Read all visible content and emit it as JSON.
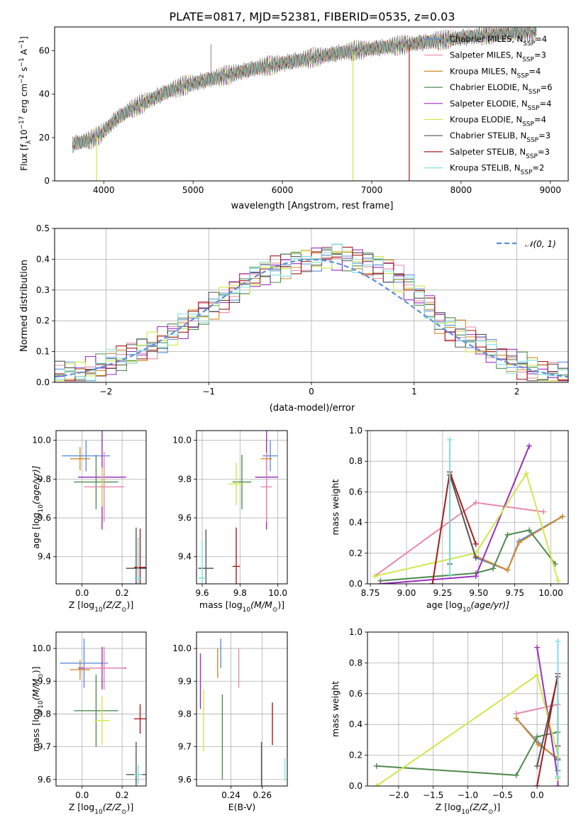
{
  "figure_title": "PLATE=0817, MJD=52381, FIBERID=0535, z=0.03",
  "colors": {
    "Chabrier MILES": "#5b8fdc",
    "Salpeter MILES": "#e48aa8",
    "Kroupa MILES": "#d08b2a",
    "Chabrier ELODIE": "#4f8a4f",
    "Salpeter ELODIE": "#9a2fc0",
    "Kroupa ELODIE": "#cfe84a",
    "Chabrier STELIB": "#555555",
    "Salpeter STELIB": "#a51c1c",
    "Kroupa STELIB": "#7fe0e0",
    "median": "#ed7a2b",
    "normal_curve": "#5b8fdc"
  },
  "panel_spectrum": {
    "xlabel": "wavelength [Angstrom, rest frame]",
    "ylabel": "Flux [f",
    "ylabel_sub": "λ",
    "ylabel_rest": "10",
    "ylabel_exp": "−17",
    "ylabel_tail": " erg cm",
    "ylabel_exp2": "−2",
    "ylabel_tail2": " s",
    "ylabel_exp3": "−1",
    "ylabel_tail3": " A",
    "ylabel_exp4": "−1",
    "ylabel_end": "]",
    "legend": [
      {
        "name": "Chabrier MILES",
        "n": "4"
      },
      {
        "name": "Salpeter MILES",
        "n": "3"
      },
      {
        "name": "Kroupa MILES",
        "n": "4"
      },
      {
        "name": "Chabrier ELODIE",
        "n": "6"
      },
      {
        "name": "Salpeter ELODIE",
        "n": "4"
      },
      {
        "name": "Kroupa ELODIE",
        "n": "4"
      },
      {
        "name": "Chabrier STELIB",
        "n": "3"
      },
      {
        "name": "Salpeter STELIB",
        "n": "3"
      },
      {
        "name": "Kroupa STELIB",
        "n": "2"
      }
    ],
    "nssp_prefix": ", N",
    "nssp_sub": "SSP",
    "nssp_eq": "="
  },
  "chart_data": [
    {
      "type": "line",
      "xlim": [
        3450,
        9200
      ],
      "ylim": [
        0,
        71
      ],
      "xticks": [
        4000,
        5000,
        6000,
        7000,
        8000,
        9000
      ],
      "yticks": [
        0,
        20,
        40,
        60
      ],
      "continuum": {
        "x": [
          3650,
          3750,
          3850,
          3950,
          4050,
          4150,
          4300,
          4500,
          4700,
          4900,
          5100,
          5300,
          5500,
          5700,
          5900,
          6100,
          6300,
          6500,
          6700,
          6900,
          7100,
          7300,
          7500,
          7700,
          7900,
          8100,
          8300,
          8500,
          8700,
          8850
        ],
        "y": [
          17,
          18,
          19,
          21,
          25,
          29,
          33,
          37,
          41,
          44,
          46,
          48,
          50,
          52,
          53.5,
          55,
          56.5,
          58,
          59.5,
          60.5,
          61.5,
          62.5,
          63.5,
          64.5,
          65.5,
          66.5,
          67.5,
          68,
          68.5,
          69
        ]
      },
      "drops": [
        {
          "series": "Kroupa ELODIE",
          "wavelength": 3920
        },
        {
          "series": "Kroupa ELODIE",
          "wavelength": 6790
        },
        {
          "series": "Salpeter STELIB",
          "wavelength": 7420
        }
      ],
      "spike": {
        "wavelength": 5200,
        "value": 63
      }
    },
    {
      "type": "bar",
      "title": "",
      "xlabel": "(data-model)/error",
      "ylabel": "Normed distribution",
      "xlim": [
        -2.5,
        2.5
      ],
      "ylim": [
        0,
        0.5
      ],
      "xticks": [
        -2,
        -1,
        0,
        1,
        2
      ],
      "yticks": [
        0.0,
        0.1,
        0.2,
        0.3,
        0.4,
        0.5
      ],
      "bin_edges_start": -2.5,
      "bin_width": 0.1,
      "legend_label": "𝒩(0, 1)",
      "base_histogram": [
        0.025,
        0.027,
        0.03,
        0.04,
        0.05,
        0.062,
        0.075,
        0.09,
        0.105,
        0.12,
        0.14,
        0.16,
        0.18,
        0.2,
        0.225,
        0.25,
        0.27,
        0.3,
        0.325,
        0.34,
        0.355,
        0.37,
        0.38,
        0.395,
        0.4,
        0.405,
        0.41,
        0.41,
        0.405,
        0.4,
        0.39,
        0.38,
        0.365,
        0.34,
        0.31,
        0.28,
        0.25,
        0.2,
        0.175,
        0.16,
        0.14,
        0.12,
        0.1,
        0.085,
        0.07,
        0.055,
        0.04,
        0.03,
        0.025,
        0.02
      ]
    },
    {
      "type": "scatter",
      "xlabel": "Z [log",
      "xlabel_sub": "10",
      "xlabel_rest": "(Z/Z",
      "xlabel_sub2": "⊙",
      "xlabel_end": ")]",
      "ylabel": "age  [log",
      "ylabel_sub": "10",
      "ylabel_rest": "(age/yr)]",
      "xlim": [
        -0.13,
        0.32
      ],
      "ylim": [
        9.26,
        10.05
      ],
      "xticks": [
        0.0,
        0.2
      ],
      "yticks": [
        9.4,
        9.6,
        9.8,
        10.0
      ],
      "points": [
        {
          "series": "Chabrier MILES",
          "x": 0.02,
          "y": 9.92,
          "xerr": 0.12,
          "yerr": 0.08
        },
        {
          "series": "Kroupa MILES",
          "x": -0.01,
          "y": 9.905,
          "xerr": 0.05,
          "yerr": 0.06
        },
        {
          "series": "Salpeter ELODIE",
          "x": 0.1,
          "y": 9.81,
          "xerr": 0.12,
          "yerr": 0.27
        },
        {
          "series": "Chabrier ELODIE",
          "x": 0.07,
          "y": 9.785,
          "xerr": 0.11,
          "yerr": 0.14
        },
        {
          "series": "Kroupa ELODIE",
          "x": 0.1,
          "y": 9.76,
          "xerr": 0.04,
          "yerr": 0.1
        },
        {
          "series": "Salpeter MILES",
          "x": 0.11,
          "y": 9.76,
          "xerr": 0.1,
          "yerr": 0.18
        },
        {
          "series": "Chabrier STELIB",
          "x": 0.27,
          "y": 9.34,
          "xerr": 0.05,
          "yerr": 0.21
        },
        {
          "series": "Salpeter STELIB",
          "x": 0.29,
          "y": 9.345,
          "xerr": 0.03,
          "yerr": 0.2
        },
        {
          "series": "Kroupa STELIB",
          "x": 0.28,
          "y": 9.29,
          "xerr": 0.02,
          "yerr": 0.21
        }
      ]
    },
    {
      "type": "scatter",
      "xlabel": "mass [log",
      "xlabel_sub": "10",
      "xlabel_rest": "(M/M",
      "xlabel_sub2": "⊙",
      "xlabel_end": ")]",
      "xlim": [
        9.57,
        10.05
      ],
      "ylim": [
        9.26,
        10.05
      ],
      "xticks": [
        9.6,
        9.8,
        10.0
      ],
      "yticks": [
        9.4,
        9.6,
        9.8,
        10.0
      ],
      "points": [
        {
          "series": "Chabrier MILES",
          "x": 9.96,
          "y": 9.92,
          "xerr": 0.04,
          "yerr": 0.08
        },
        {
          "series": "Kroupa MILES",
          "x": 9.94,
          "y": 9.905,
          "xerr": 0.03,
          "yerr": 0.06
        },
        {
          "series": "Salpeter ELODIE",
          "x": 9.94,
          "y": 9.81,
          "xerr": 0.06,
          "yerr": 0.27
        },
        {
          "series": "Chabrier ELODIE",
          "x": 9.81,
          "y": 9.785,
          "xerr": 0.05,
          "yerr": 0.14
        },
        {
          "series": "Kroupa ELODIE",
          "x": 9.78,
          "y": 9.775,
          "xerr": 0.04,
          "yerr": 0.11
        },
        {
          "series": "Salpeter MILES",
          "x": 9.94,
          "y": 9.76,
          "xerr": 0.03,
          "yerr": 0.18
        },
        {
          "series": "Chabrier STELIB",
          "x": 9.62,
          "y": 9.34,
          "xerr": 0.04,
          "yerr": 0.2
        },
        {
          "series": "Salpeter STELIB",
          "x": 9.78,
          "y": 9.35,
          "xerr": 0.02,
          "yerr": 0.2
        },
        {
          "series": "Kroupa STELIB",
          "x": 9.6,
          "y": 9.29,
          "xerr": 0.02,
          "yerr": 0.2
        }
      ]
    },
    {
      "type": "line",
      "xlabel": "age  [log",
      "xlabel_sub": "10",
      "xlabel_rest": "(age/yr)]",
      "ylabel": "mass weight",
      "xlim": [
        8.73,
        10.12
      ],
      "ylim": [
        0,
        1.0
      ],
      "xticks": [
        8.75,
        9.0,
        9.25,
        9.5,
        9.75,
        10.0
      ],
      "yticks": [
        0.0,
        0.2,
        0.4,
        0.6,
        0.8,
        1.0
      ],
      "series": [
        {
          "name": "Chabrier MILES",
          "x": [
            9.48,
            9.7,
            9.78,
            10.08
          ],
          "y": [
            0.17,
            0.09,
            0.28,
            0.44
          ]
        },
        {
          "name": "Salpeter MILES",
          "x": [
            8.78,
            9.48,
            9.95
          ],
          "y": [
            0.05,
            0.53,
            0.47
          ]
        },
        {
          "name": "Kroupa MILES",
          "x": [
            9.48,
            9.7,
            9.78,
            10.08
          ],
          "y": [
            0.18,
            0.09,
            0.27,
            0.44
          ]
        },
        {
          "name": "Chabrier ELODIE",
          "x": [
            8.82,
            9.48,
            9.6,
            9.7,
            9.85,
            10.03
          ],
          "y": [
            0.02,
            0.07,
            0.1,
            0.32,
            0.35,
            0.13
          ]
        },
        {
          "name": "Salpeter ELODIE",
          "x": [
            8.82,
            9.48,
            9.85
          ],
          "y": [
            0.0,
            0.05,
            0.9
          ]
        },
        {
          "name": "Kroupa ELODIE",
          "x": [
            8.78,
            9.48,
            9.83,
            10.05
          ],
          "y": [
            0.05,
            0.2,
            0.72,
            0.02
          ]
        },
        {
          "name": "Chabrier STELIB",
          "x": [
            9.3,
            9.3,
            9.48
          ],
          "y": [
            0.13,
            0.71,
            0.17
          ]
        },
        {
          "name": "Salpeter STELIB",
          "x": [
            9.18,
            9.3,
            9.48
          ],
          "y": [
            0.0,
            0.73,
            0.26
          ]
        },
        {
          "name": "Kroupa STELIB",
          "x": [
            9.3,
            9.3
          ],
          "y": [
            0.06,
            0.94
          ]
        }
      ]
    },
    {
      "type": "scatter",
      "xlabel": "Z [log",
      "xlabel_sub": "10",
      "xlabel_rest": "(Z/Z",
      "xlabel_sub2": "⊙",
      "xlabel_end": ")]",
      "ylabel": "mass [log",
      "ylabel_sub": "10",
      "ylabel_rest": "(M/M",
      "ylabel_sub2": "⊙",
      "ylabel_end": ")]",
      "xlim": [
        -0.13,
        0.32
      ],
      "ylim": [
        9.58,
        10.05
      ],
      "xticks": [
        0.0,
        0.2
      ],
      "yticks": [
        9.6,
        9.7,
        9.8,
        9.9,
        10.0
      ],
      "points": [
        {
          "series": "Chabrier MILES",
          "x": 0.01,
          "y": 9.955,
          "xerr": 0.12,
          "yerr": 0.075
        },
        {
          "series": "Kroupa MILES",
          "x": -0.01,
          "y": 9.935,
          "xerr": 0.05,
          "yerr": 0.03
        },
        {
          "series": "Salpeter ELODIE",
          "x": 0.1,
          "y": 9.94,
          "xerr": 0.12,
          "yerr": 0.065
        },
        {
          "series": "Salpeter MILES",
          "x": 0.11,
          "y": 9.94,
          "xerr": 0.1,
          "yerr": 0.065
        },
        {
          "series": "Chabrier ELODIE",
          "x": 0.07,
          "y": 9.81,
          "xerr": 0.11,
          "yerr": 0.11
        },
        {
          "series": "Kroupa ELODIE",
          "x": 0.1,
          "y": 9.78,
          "xerr": 0.04,
          "yerr": 0.075
        },
        {
          "series": "Salpeter STELIB",
          "x": 0.29,
          "y": 9.785,
          "xerr": 0.03,
          "yerr": 0.045
        },
        {
          "series": "Chabrier STELIB",
          "x": 0.27,
          "y": 9.615,
          "xerr": 0.05,
          "yerr": 0.1
        },
        {
          "series": "Kroupa STELIB",
          "x": 0.28,
          "y": 9.615,
          "xerr": 0.02,
          "yerr": 0.03
        }
      ]
    },
    {
      "type": "scatter",
      "xlabel": "E(B-V)",
      "xlim": [
        0.218,
        0.276
      ],
      "ylim": [
        9.58,
        10.05
      ],
      "xticks": [
        0.24,
        0.26
      ],
      "yticks": [
        9.6,
        9.7,
        9.8,
        9.9,
        10.0
      ],
      "points": [
        {
          "series": "Chabrier MILES",
          "x": 0.2335,
          "y": 9.985,
          "yerr": 0.045
        },
        {
          "series": "Kroupa MILES",
          "x": 0.2315,
          "y": 9.955,
          "yerr": 0.045
        },
        {
          "series": "Salpeter ELODIE",
          "x": 0.2205,
          "y": 9.9,
          "yerr": 0.085
        },
        {
          "series": "Salpeter MILES",
          "x": 0.245,
          "y": 9.94,
          "yerr": 0.06
        },
        {
          "series": "Chabrier ELODIE",
          "x": 0.2345,
          "y": 9.73,
          "yerr": 0.13
        },
        {
          "series": "Kroupa ELODIE",
          "x": 0.2225,
          "y": 9.78,
          "yerr": 0.095
        },
        {
          "series": "Salpeter STELIB",
          "x": 0.2665,
          "y": 9.77,
          "yerr": 0.065
        },
        {
          "series": "Chabrier STELIB",
          "x": 0.2595,
          "y": 9.62,
          "yerr": 0.095
        },
        {
          "series": "Kroupa STELIB",
          "x": 0.2745,
          "y": 9.63,
          "yerr": 0.035
        }
      ]
    },
    {
      "type": "line",
      "xlabel": "Z [log",
      "xlabel_sub": "10",
      "xlabel_rest": "(Z/Z",
      "xlabel_sub2": "⊙",
      "xlabel_end": ")]",
      "ylabel": "mass weight",
      "xlim": [
        -2.45,
        0.45
      ],
      "ylim": [
        0,
        1.0
      ],
      "xticks": [
        -2.0,
        -1.5,
        -1.0,
        -0.5,
        0.0
      ],
      "yticks": [
        0.0,
        0.2,
        0.4,
        0.6,
        0.8,
        1.0
      ],
      "series": [
        {
          "name": "Chabrier MILES",
          "x": [
            -0.3,
            0.02,
            0.3
          ],
          "y": [
            0.44,
            0.28,
            0.17
          ]
        },
        {
          "name": "Salpeter MILES",
          "x": [
            -0.3,
            0.3,
            0.3
          ],
          "y": [
            0.47,
            0.53,
            0.05
          ]
        },
        {
          "name": "Kroupa MILES",
          "x": [
            -0.3,
            0.02,
            0.3
          ],
          "y": [
            0.44,
            0.27,
            0.18
          ]
        },
        {
          "name": "Chabrier ELODIE",
          "x": [
            -2.32,
            -0.3,
            0.0,
            0.3,
            0.3
          ],
          "y": [
            0.13,
            0.07,
            0.32,
            0.35,
            0.1
          ]
        },
        {
          "name": "Salpeter ELODIE",
          "x": [
            0.0,
            0.3,
            0.3
          ],
          "y": [
            0.9,
            0.05,
            0.0
          ]
        },
        {
          "name": "Kroupa ELODIE",
          "x": [
            -2.32,
            0.0,
            0.3,
            0.3
          ],
          "y": [
            0.0,
            0.72,
            0.2,
            0.05
          ]
        },
        {
          "name": "Chabrier STELIB",
          "x": [
            0.0,
            0.3,
            0.3
          ],
          "y": [
            0.13,
            0.71,
            0.17
          ]
        },
        {
          "name": "Salpeter STELIB",
          "x": [
            0.0,
            0.3,
            0.3
          ],
          "y": [
            0.0,
            0.73,
            0.26
          ]
        },
        {
          "name": "Kroupa STELIB",
          "x": [
            0.3,
            0.3
          ],
          "y": [
            0.06,
            0.94
          ]
        }
      ]
    }
  ]
}
